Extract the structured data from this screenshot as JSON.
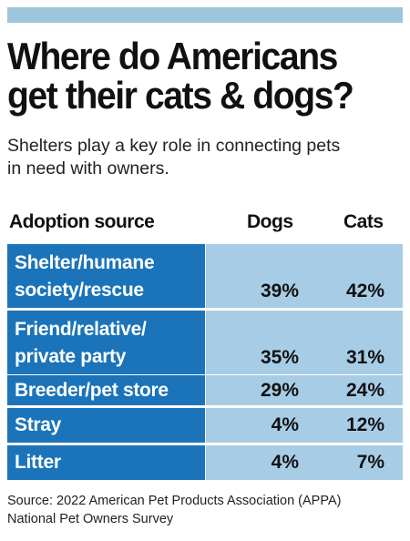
{
  "title_lines": [
    "Where do Americans",
    "get their cats & dogs?"
  ],
  "subtitle_lines": [
    "Shelters play a key role in connecting pets",
    "in need with owners."
  ],
  "colors": {
    "header_bar": "#9ec5dc",
    "label_cell": "#1b74b9",
    "value_cell": "#a7cde6"
  },
  "chart_data": {
    "type": "table",
    "columns": [
      "Adoption source",
      "Dogs",
      "Cats"
    ],
    "rows": [
      {
        "source_lines": [
          "Shelter/humane",
          "society/rescue"
        ],
        "dogs": "39%",
        "cats": "42%"
      },
      {
        "source_lines": [
          "Friend/relative/",
          "private party"
        ],
        "dogs": "35%",
        "cats": "31%"
      },
      {
        "source_lines": [
          "Breeder/pet store"
        ],
        "dogs": "29%",
        "cats": "24%"
      },
      {
        "source_lines": [
          "Stray"
        ],
        "dogs": "4%",
        "cats": "12%"
      },
      {
        "source_lines": [
          "Litter"
        ],
        "dogs": "4%",
        "cats": "7%"
      }
    ]
  },
  "source_lines": [
    "Source: 2022 American Pet Products Association (APPA)",
    "National Pet Owners Survey"
  ]
}
